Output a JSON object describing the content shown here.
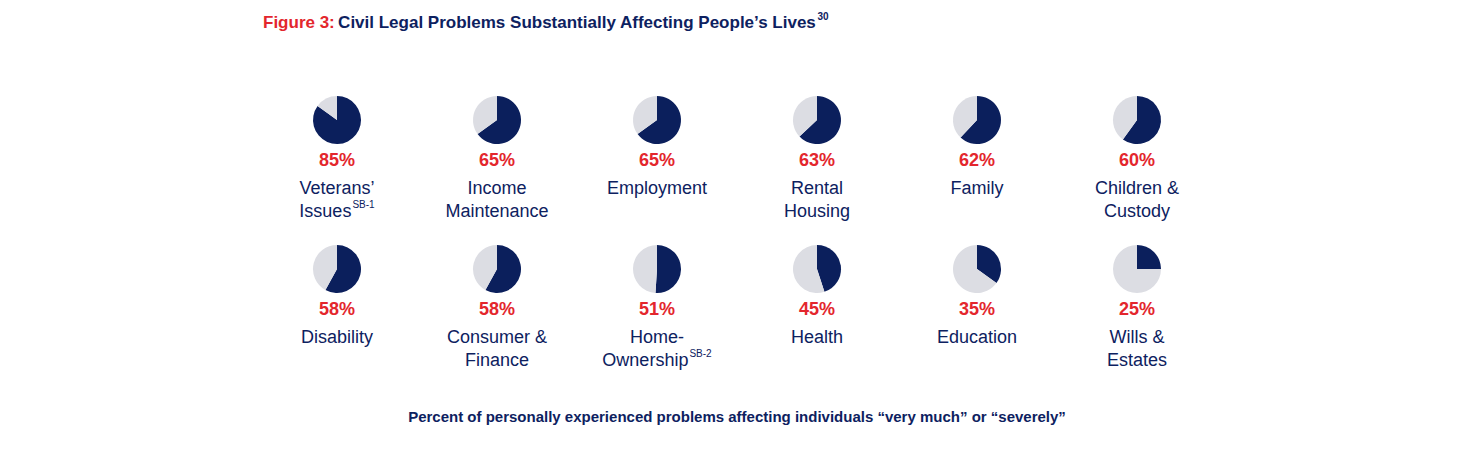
{
  "chart_data": {
    "type": "pie",
    "figure_label": "Figure 3:",
    "title": "Civil Legal Problems Substantially Affecting People’s Lives",
    "title_footnote": "30",
    "caption": "Percent of personally experienced problems affecting individuals “very much” or “severely”",
    "categories": [
      "Veterans’ Issues",
      "Income Maintenance",
      "Employment",
      "Rental Housing",
      "Family",
      "Children & Custody",
      "Disability",
      "Consumer & Finance",
      "Home-Ownership",
      "Health",
      "Education",
      "Wills & Estates"
    ],
    "category_notes": [
      "SB-1",
      null,
      null,
      null,
      null,
      null,
      null,
      null,
      "SB-2",
      null,
      null,
      null
    ],
    "values": [
      85,
      65,
      65,
      63,
      62,
      60,
      58,
      58,
      51,
      45,
      35,
      25
    ],
    "value_labels": [
      "85%",
      "65%",
      "65%",
      "63%",
      "62%",
      "60%",
      "58%",
      "58%",
      "51%",
      "45%",
      "35%",
      "25%"
    ],
    "total": 100,
    "data_labels": true,
    "color": "#0b1f5c"
  }
}
